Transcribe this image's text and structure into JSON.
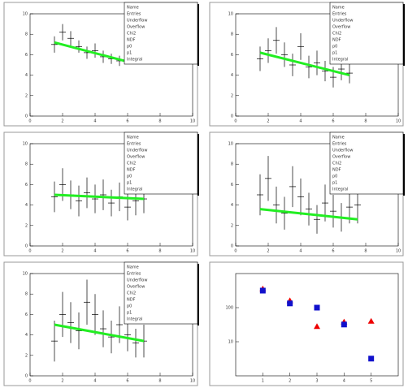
{
  "chart_data": [
    {
      "type": "errorbar",
      "x": [
        1.5,
        2,
        2.5,
        3,
        3.5,
        4,
        4.5,
        5,
        5.5,
        6
      ],
      "xlim": [
        0,
        10
      ],
      "ylim": [
        0,
        10
      ],
      "xticks": [
        0,
        2,
        4,
        6,
        8,
        10
      ],
      "yticks": [
        0,
        2,
        4,
        6,
        8,
        10
      ],
      "series": [
        {
          "color": "#000000",
          "values": [
            7.0,
            8.2,
            7.6,
            6.8,
            6.2,
            6.4,
            5.8,
            5.6,
            5.4,
            5.6
          ],
          "errors": [
            0.8,
            0.8,
            0.7,
            0.6,
            0.6,
            0.7,
            0.6,
            0.5,
            0.5,
            0.5
          ]
        }
      ],
      "fit": {
        "color": "#22ee22",
        "x": [
          1.5,
          5.8
        ],
        "values": [
          7.2,
          5.4
        ]
      },
      "stats": [
        "Name",
        "Entries",
        "Underflow",
        "Overflow",
        "Chi2",
        "NDF",
        "p0",
        "p1",
        "Integral"
      ]
    },
    {
      "type": "errorbar",
      "x": [
        1.5,
        2,
        2.5,
        3,
        3.5,
        4,
        4.5,
        5,
        5.5,
        6,
        6.5,
        7
      ],
      "xlim": [
        0,
        10
      ],
      "ylim": [
        0,
        10
      ],
      "xticks": [
        0,
        2,
        4,
        6,
        8,
        10
      ],
      "yticks": [
        0,
        2,
        4,
        6,
        8,
        10
      ],
      "series": [
        {
          "color": "#000000",
          "values": [
            5.6,
            6.4,
            7.4,
            6.0,
            5.0,
            6.8,
            4.8,
            5.2,
            4.4,
            3.8,
            4.6,
            4.2
          ],
          "errors": [
            1.2,
            1.2,
            1.3,
            1.2,
            1.1,
            1.3,
            1.1,
            1.2,
            1.0,
            1.0,
            1.1,
            1.0
          ]
        }
      ],
      "fit": {
        "color": "#22ee22",
        "x": [
          1.5,
          7
        ],
        "values": [
          6.2,
          4.0
        ]
      },
      "stats": [
        "Name",
        "Entries",
        "Underflow",
        "Overflow",
        "Chi2",
        "NDF",
        "p0",
        "p1",
        "Integral"
      ]
    },
    {
      "type": "errorbar",
      "x": [
        1.5,
        2,
        2.5,
        3,
        3.5,
        4,
        4.5,
        5,
        5.5,
        6,
        6.5,
        7
      ],
      "xlim": [
        0,
        10
      ],
      "ylim": [
        0,
        10
      ],
      "xticks": [
        0,
        2,
        4,
        6,
        8,
        10
      ],
      "yticks": [
        0,
        2,
        4,
        6,
        8,
        10
      ],
      "series": [
        {
          "color": "#000000",
          "values": [
            4.8,
            6.0,
            5.0,
            4.4,
            5.2,
            4.6,
            5.0,
            4.2,
            4.8,
            3.8,
            4.4,
            4.6
          ],
          "errors": [
            1.5,
            1.6,
            1.4,
            1.5,
            1.5,
            1.4,
            1.5,
            1.3,
            1.4,
            1.3,
            1.4,
            1.4
          ]
        }
      ],
      "fit": {
        "color": "#22ee22",
        "x": [
          1.5,
          7
        ],
        "values": [
          5.0,
          4.6
        ]
      },
      "stats": [
        "Name",
        "Entries",
        "Underflow",
        "Overflow",
        "Chi2",
        "NDF",
        "p0",
        "p1",
        "Integral"
      ]
    },
    {
      "type": "errorbar",
      "x": [
        1.5,
        2,
        2.5,
        3,
        3.5,
        4,
        4.5,
        5,
        5.5,
        6,
        6.5,
        7,
        7.5
      ],
      "xlim": [
        0,
        10
      ],
      "ylim": [
        0,
        10
      ],
      "xticks": [
        0,
        2,
        4,
        6,
        8,
        10
      ],
      "yticks": [
        0,
        2,
        4,
        6,
        8,
        10
      ],
      "series": [
        {
          "color": "#000000",
          "values": [
            5.0,
            6.6,
            4.0,
            3.2,
            5.8,
            4.8,
            3.6,
            2.6,
            4.2,
            3.4,
            2.8,
            3.8,
            4.0
          ],
          "errors": [
            2.0,
            2.2,
            1.8,
            1.6,
            2.0,
            1.8,
            1.6,
            1.4,
            1.8,
            1.6,
            1.4,
            1.6,
            1.8
          ]
        }
      ],
      "fit": {
        "color": "#22ee22",
        "x": [
          1.5,
          7.5
        ],
        "values": [
          3.6,
          2.6
        ]
      },
      "stats": [
        "Name",
        "Entries",
        "Underflow",
        "Overflow",
        "Chi2",
        "NDF",
        "p0",
        "p1",
        "Integral"
      ]
    },
    {
      "type": "errorbar",
      "x": [
        1.5,
        2,
        2.5,
        3,
        3.5,
        4,
        4.5,
        5,
        5.5,
        6,
        6.5,
        7
      ],
      "xlim": [
        0,
        10
      ],
      "ylim": [
        0,
        10
      ],
      "xticks": [
        0,
        2,
        4,
        6,
        8,
        10
      ],
      "yticks": [
        0,
        2,
        4,
        6,
        8,
        10
      ],
      "series": [
        {
          "color": "#000000",
          "values": [
            3.4,
            6.0,
            5.2,
            4.4,
            7.2,
            6.0,
            4.6,
            3.8,
            5.0,
            4.0,
            3.2,
            3.4
          ],
          "errors": [
            2.0,
            2.2,
            2.0,
            1.8,
            2.2,
            2.0,
            1.8,
            1.6,
            1.8,
            1.6,
            1.4,
            1.6
          ]
        }
      ],
      "fit": {
        "color": "#22ee22",
        "x": [
          1.5,
          7
        ],
        "values": [
          5.0,
          3.4
        ]
      },
      "stats": [
        "Name",
        "Entries",
        "Underflow",
        "Overflow",
        "Chi2",
        "NDF",
        "p0",
        "p1",
        "Integral"
      ]
    },
    {
      "type": "scatter",
      "log_y": true,
      "x": [
        1,
        2,
        3,
        4,
        5
      ],
      "xlim": [
        0,
        6
      ],
      "ylim": [
        1,
        1000
      ],
      "xticks": [
        1,
        2,
        3,
        4,
        5
      ],
      "yticks": [
        10,
        100
      ],
      "series": [
        {
          "color": "#ee0000",
          "marker": "triangle",
          "values": [
            355,
            160,
            28,
            38,
            40
          ]
        },
        {
          "color": "#1111cc",
          "marker": "square",
          "values": [
            316,
            133,
            100,
            32,
            3.2
          ]
        }
      ]
    }
  ]
}
